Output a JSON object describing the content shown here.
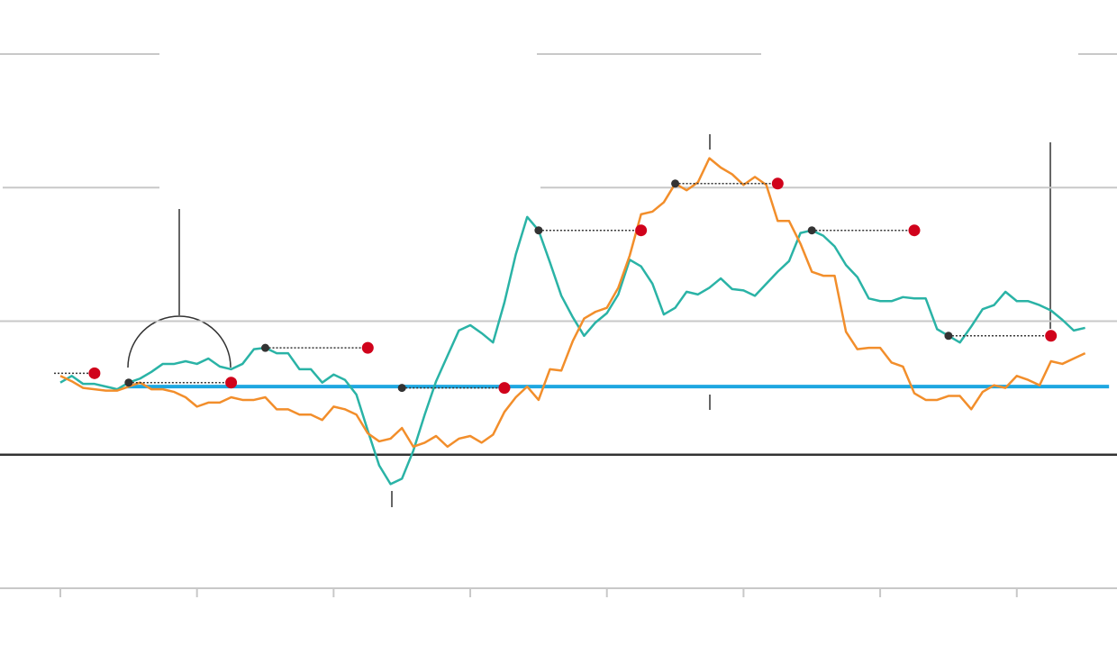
{
  "chart_data": {
    "type": "line",
    "x": [
      0,
      1,
      2,
      3,
      4,
      5,
      6,
      7,
      8,
      9,
      10,
      11,
      12,
      13,
      14,
      15,
      16,
      17,
      18,
      19,
      20,
      21,
      22,
      23,
      24,
      25,
      26,
      27,
      28,
      29,
      30,
      31,
      32,
      33,
      34,
      35,
      36,
      37,
      38,
      39,
      40,
      41,
      42,
      43,
      44,
      45,
      46,
      47,
      48,
      49,
      50,
      51,
      52,
      53,
      54,
      55,
      56,
      57,
      58,
      59,
      60,
      61,
      62,
      63,
      64,
      65,
      66,
      67,
      68,
      69,
      70,
      71,
      72,
      73,
      74,
      75,
      76,
      77,
      78,
      79,
      80,
      81,
      82,
      83,
      84,
      85,
      86,
      87,
      88,
      89,
      90
    ],
    "series": [
      {
        "color": "#2ab3a6",
        "values": [
          0.54,
          0.59,
          0.53,
          0.53,
          0.51,
          0.49,
          0.54,
          0.57,
          0.62,
          0.68,
          0.68,
          0.7,
          0.68,
          0.72,
          0.66,
          0.64,
          0.68,
          0.79,
          0.8,
          0.76,
          0.76,
          0.64,
          0.64,
          0.54,
          0.6,
          0.56,
          0.45,
          0.18,
          -0.08,
          -0.22,
          -0.18,
          0.03,
          0.3,
          0.55,
          0.74,
          0.93,
          0.97,
          0.91,
          0.84,
          1.14,
          1.5,
          1.78,
          1.68,
          1.44,
          1.19,
          1.03,
          0.89,
          0.99,
          1.06,
          1.2,
          1.46,
          1.41,
          1.28,
          1.05,
          1.1,
          1.22,
          1.2,
          1.25,
          1.32,
          1.24,
          1.23,
          1.19,
          1.28,
          1.37,
          1.45,
          1.66,
          1.68,
          1.64,
          1.56,
          1.42,
          1.33,
          1.17,
          1.15,
          1.15,
          1.18,
          1.17,
          1.17,
          0.94,
          0.89,
          0.84,
          0.96,
          1.09,
          1.12,
          1.22,
          1.15,
          1.15,
          1.12,
          1.08,
          1.01,
          0.93,
          0.95
        ]
      },
      {
        "color": "#f28e2b",
        "values": [
          0.59,
          0.55,
          0.5,
          0.49,
          0.48,
          0.48,
          0.51,
          0.54,
          0.49,
          0.49,
          0.47,
          0.43,
          0.36,
          0.39,
          0.39,
          0.43,
          0.41,
          0.41,
          0.43,
          0.34,
          0.34,
          0.3,
          0.3,
          0.26,
          0.36,
          0.34,
          0.3,
          0.16,
          0.1,
          0.12,
          0.2,
          0.06,
          0.09,
          0.14,
          0.06,
          0.12,
          0.14,
          0.09,
          0.15,
          0.32,
          0.43,
          0.51,
          0.41,
          0.64,
          0.63,
          0.85,
          1.02,
          1.07,
          1.1,
          1.25,
          1.49,
          1.8,
          1.82,
          1.89,
          2.03,
          1.98,
          2.04,
          2.22,
          2.15,
          2.1,
          2.02,
          2.08,
          2.02,
          1.75,
          1.75,
          1.58,
          1.37,
          1.34,
          1.34,
          0.92,
          0.79,
          0.8,
          0.8,
          0.69,
          0.66,
          0.46,
          0.41,
          0.41,
          0.44,
          0.44,
          0.34,
          0.47,
          0.52,
          0.5,
          0.59,
          0.56,
          0.52,
          0.7,
          0.68,
          0.72,
          0.76
        ]
      }
    ],
    "reference_line": {
      "value": 0.51,
      "xlim": [
        5.8,
        92.1
      ],
      "color": "#1ea7e1"
    },
    "markers": [
      {
        "x0": -0.55,
        "x1": 3,
        "y": 0.61
      },
      {
        "x0": 6,
        "x1": 15,
        "y": 0.54
      },
      {
        "x0": 18,
        "x1": 27,
        "y": 0.8
      },
      {
        "x0": 30,
        "x1": 39,
        "y": 0.5
      },
      {
        "x0": 42,
        "x1": 51,
        "y": 1.68
      },
      {
        "x0": 54,
        "x1": 63,
        "y": 2.03
      },
      {
        "x0": 66,
        "x1": 75,
        "y": 1.68
      },
      {
        "x0": 78,
        "x1": 87,
        "y": 0.89
      }
    ],
    "marker_color": "#d0021b",
    "xlim": [
      -5.3,
      92.8
    ],
    "ylim": [
      -1,
      3
    ],
    "xticks": [
      0,
      12,
      24,
      36,
      48,
      60,
      72,
      84
    ],
    "yticks": [
      -1,
      0,
      1,
      2,
      3
    ],
    "grid": true
  }
}
